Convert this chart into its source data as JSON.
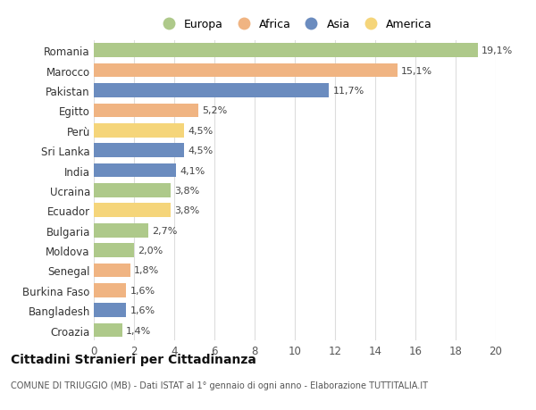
{
  "categories": [
    "Romania",
    "Marocco",
    "Pakistan",
    "Egitto",
    "Perù",
    "Sri Lanka",
    "India",
    "Ucraina",
    "Ecuador",
    "Bulgaria",
    "Moldova",
    "Senegal",
    "Burkina Faso",
    "Bangladesh",
    "Croazia"
  ],
  "values": [
    19.1,
    15.1,
    11.7,
    5.2,
    4.5,
    4.5,
    4.1,
    3.8,
    3.8,
    2.7,
    2.0,
    1.8,
    1.6,
    1.6,
    1.4
  ],
  "labels": [
    "19,1%",
    "15,1%",
    "11,7%",
    "5,2%",
    "4,5%",
    "4,5%",
    "4,1%",
    "3,8%",
    "3,8%",
    "2,7%",
    "2,0%",
    "1,8%",
    "1,6%",
    "1,6%",
    "1,4%"
  ],
  "continents": [
    "Europa",
    "Africa",
    "Asia",
    "Africa",
    "America",
    "Asia",
    "Asia",
    "Europa",
    "America",
    "Europa",
    "Europa",
    "Africa",
    "Africa",
    "Asia",
    "Europa"
  ],
  "colors": {
    "Europa": "#aec98a",
    "Africa": "#f0b482",
    "Asia": "#6b8cbf",
    "America": "#f5d57a"
  },
  "legend_order": [
    "Europa",
    "Africa",
    "Asia",
    "America"
  ],
  "title": "Cittadini Stranieri per Cittadinanza",
  "subtitle": "COMUNE DI TRIUGGIO (MB) - Dati ISTAT al 1° gennaio di ogni anno - Elaborazione TUTTITALIA.IT",
  "xlim": [
    0,
    20
  ],
  "xticks": [
    0,
    2,
    4,
    6,
    8,
    10,
    12,
    14,
    16,
    18,
    20
  ],
  "background_color": "#ffffff",
  "grid_color": "#dddddd"
}
